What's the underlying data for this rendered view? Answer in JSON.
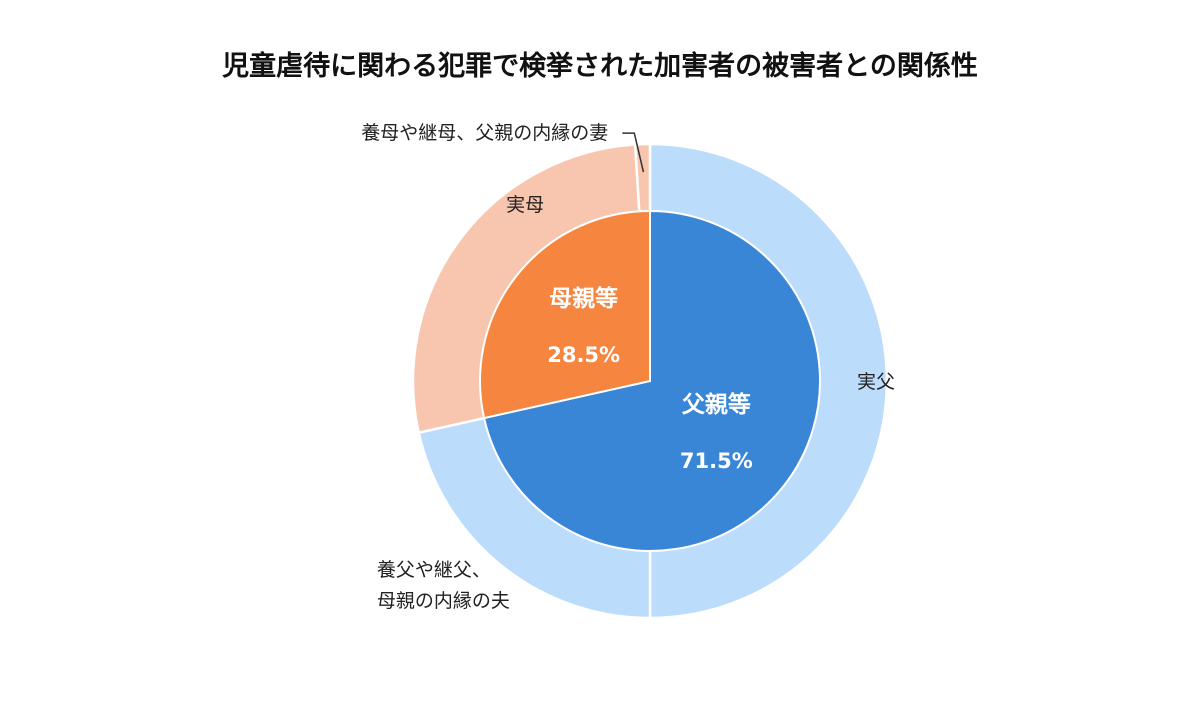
{
  "chart_data": {
    "type": "pie",
    "title": "児童虐待に関わる犯罪で検挙された加害者の被害者との関係性",
    "inner_ring": [
      {
        "name": "父親等",
        "value": 71.5,
        "value_label": "71.5%",
        "color": "#3a86d6"
      },
      {
        "name": "母親等",
        "value": 28.5,
        "value_label": "28.5%",
        "color": "#f5853f"
      }
    ],
    "outer_ring": [
      {
        "name": "実父",
        "value": 50.0,
        "group": "父親等",
        "color": "#bcdcfb"
      },
      {
        "name": "養父や継父、母親の内縁の夫",
        "lines": [
          "養父や継父、",
          "母親の内縁の夫"
        ],
        "value": 21.5,
        "group": "父親等",
        "color": "#bcdcfb"
      },
      {
        "name": "実母",
        "value": 27.5,
        "group": "母親等",
        "color": "#f8c5ae"
      },
      {
        "name": "養母や継母、父親の内縁の妻",
        "value": 1.0,
        "group": "母親等",
        "color": "#f8c5ae"
      }
    ]
  }
}
